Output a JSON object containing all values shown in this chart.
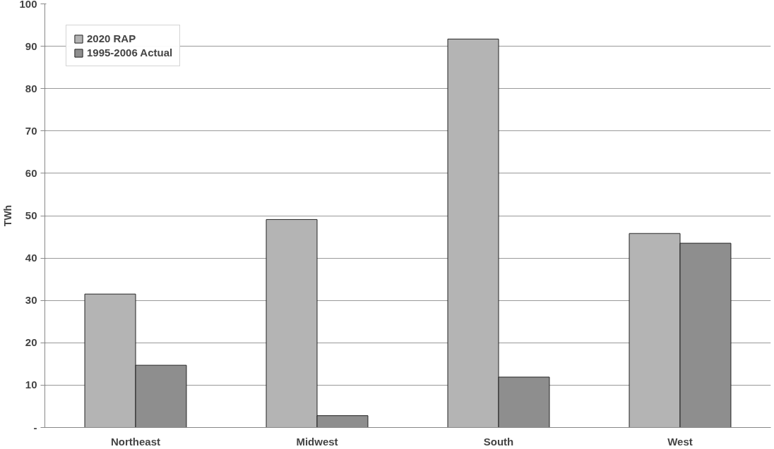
{
  "chart_data": {
    "type": "bar",
    "ylabel": "TWh",
    "categories": [
      "Northeast",
      "Midwest",
      "South",
      "West"
    ],
    "series": [
      {
        "name": "2020 RAP",
        "color": "#b4b4b4",
        "values": [
          31.5,
          49.1,
          91.7,
          45.8
        ]
      },
      {
        "name": "1995-2006 Actual",
        "color": "#8e8e8e",
        "values": [
          14.7,
          2.8,
          11.9,
          43.5
        ]
      }
    ],
    "ylim": [
      0,
      100
    ],
    "yticks": [
      {
        "value": 0,
        "label": "-"
      },
      10,
      20,
      30,
      40,
      50,
      60,
      70,
      80,
      90,
      100
    ],
    "grid": "y",
    "legend": "top left"
  }
}
